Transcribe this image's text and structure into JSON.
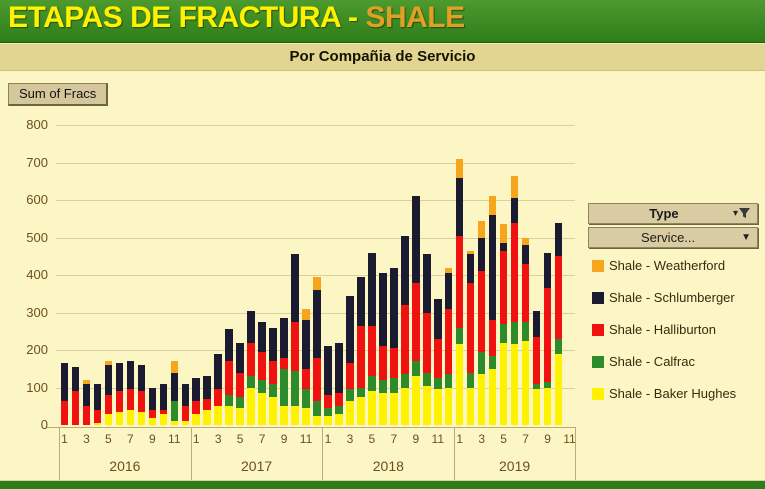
{
  "header": {
    "title_main": "ETAPAS DE FRACTURA -",
    "title_accent": "SHALE",
    "subtitle": "Por Compañia de Servicio"
  },
  "pivot": {
    "value_button_label": "Sum of Fracs",
    "type_button_label": "Type",
    "service_button_label": "Service..."
  },
  "colors": {
    "header_green": "#3a8a22",
    "bottom_strip_green": "#2f7d1a",
    "background": "#FBF6C3",
    "band_tan": "#E2D592",
    "button_tan": "#D9CCA2",
    "title_yellow": "#FFF200",
    "title_orange": "#DFA023"
  },
  "chart_data": {
    "type": "bar",
    "stacked": true,
    "title": "Sum of Fracs",
    "xlabel": "",
    "ylabel": "",
    "ylim": [
      0,
      800
    ],
    "ytick_step": 100,
    "yticks": [
      0,
      100,
      200,
      300,
      400,
      500,
      600,
      700,
      800
    ],
    "grid": true,
    "legend_position": "right",
    "years": [
      {
        "label": "2016",
        "slots": 12
      },
      {
        "label": "2017",
        "slots": 12
      },
      {
        "label": "2018",
        "slots": 12
      },
      {
        "label": "2019",
        "slots": 11
      }
    ],
    "month_tick_labels": [
      "1",
      "3",
      "5",
      "7",
      "9",
      "11"
    ],
    "series": [
      {
        "name": "Shale - Baker Hughes",
        "color": "#FFF200",
        "values": [
          0,
          0,
          0,
          5,
          30,
          35,
          40,
          35,
          20,
          30,
          10,
          10,
          30,
          40,
          50,
          50,
          45,
          100,
          85,
          75,
          50,
          50,
          45,
          25,
          25,
          30,
          65,
          75,
          90,
          85,
          85,
          100,
          130,
          105,
          95,
          100,
          215,
          100,
          135,
          150,
          220,
          215,
          225,
          95,
          100,
          190,
          0
        ]
      },
      {
        "name": "Shale - Calfrac",
        "color": "#2E8B2C",
        "values": [
          0,
          0,
          0,
          0,
          0,
          0,
          0,
          0,
          0,
          0,
          55,
          0,
          0,
          0,
          0,
          30,
          30,
          30,
          35,
          35,
          100,
          95,
          50,
          40,
          20,
          20,
          30,
          25,
          40,
          35,
          40,
          35,
          40,
          35,
          30,
          35,
          45,
          40,
          60,
          35,
          50,
          60,
          50,
          15,
          15,
          40,
          0
        ]
      },
      {
        "name": "Shale - Halliburton",
        "color": "#F01111",
        "values": [
          65,
          90,
          50,
          35,
          50,
          55,
          55,
          55,
          20,
          10,
          0,
          40,
          35,
          30,
          45,
          90,
          65,
          90,
          75,
          60,
          30,
          130,
          55,
          115,
          35,
          35,
          70,
          165,
          135,
          90,
          80,
          185,
          210,
          160,
          105,
          175,
          245,
          240,
          215,
          95,
          195,
          265,
          155,
          125,
          250,
          220,
          0
        ]
      },
      {
        "name": "Shale - Schlumberger",
        "color": "#1A1A30",
        "values": [
          100,
          65,
          60,
          70,
          80,
          75,
          75,
          70,
          60,
          70,
          75,
          60,
          60,
          60,
          95,
          85,
          80,
          85,
          80,
          90,
          105,
          180,
          130,
          180,
          130,
          135,
          180,
          130,
          195,
          195,
          215,
          185,
          230,
          155,
          105,
          95,
          155,
          75,
          90,
          280,
          20,
          65,
          50,
          70,
          95,
          90,
          0
        ]
      },
      {
        "name": "Shale - Weatherford",
        "color": "#F5A61D",
        "values": [
          0,
          0,
          10,
          0,
          10,
          0,
          0,
          0,
          0,
          0,
          30,
          0,
          0,
          0,
          0,
          0,
          0,
          0,
          0,
          0,
          0,
          0,
          30,
          35,
          0,
          0,
          0,
          0,
          0,
          0,
          0,
          0,
          0,
          0,
          0,
          15,
          50,
          10,
          45,
          50,
          50,
          60,
          20,
          0,
          0,
          0,
          0
        ]
      }
    ],
    "legend_top_to_bottom": [
      "Shale - Weatherford",
      "Shale - Schlumberger",
      "Shale - Halliburton",
      "Shale - Calfrac",
      "Shale - Baker Hughes"
    ]
  }
}
